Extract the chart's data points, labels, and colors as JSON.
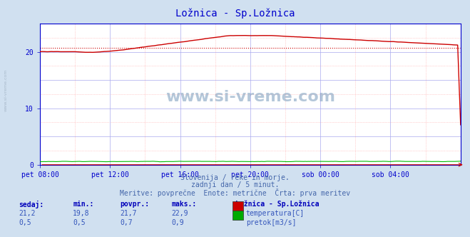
{
  "title": "Ložnica - Sp.Ložnica",
  "bg_color": "#d0e0f0",
  "plot_bg_color": "#ffffff",
  "grid_color_major": "#aaaaee",
  "grid_color_minor": "#ffaaaa",
  "title_color": "#0000cc",
  "axis_color": "#0000cc",
  "text_color": "#4466aa",
  "watermark": "www.si-vreme.com",
  "watermark_color": "#7799bb",
  "subtitle1": "Slovenija / reke in morje.",
  "subtitle2": "zadnji dan / 5 minut.",
  "subtitle3": "Meritve: povprečne  Enote: metrične  Črta: prva meritev",
  "legend_title": "Ložnica - Sp.Ložnica",
  "legend_rows": [
    {
      "sedaj": "21,2",
      "min": "19,8",
      "povpr": "21,7",
      "maks": "22,9",
      "color": "#cc0000",
      "label": "temperatura[C]"
    },
    {
      "sedaj": "0,5",
      "min": "0,5",
      "povpr": "0,7",
      "maks": "0,9",
      "color": "#00aa00",
      "label": "pretok[m3/s]"
    }
  ],
  "col_headers": [
    "sedaj:",
    "min.:",
    "povpr.:",
    "maks.:"
  ],
  "x_labels": [
    "pet 08:00",
    "pet 12:00",
    "pet 16:00",
    "pet 20:00",
    "sob 00:00",
    "sob 04:00"
  ],
  "x_ticks_norm": [
    0.0,
    0.1667,
    0.3333,
    0.5,
    0.6667,
    0.8333
  ],
  "total_points": 288,
  "ylim": [
    0,
    25
  ],
  "yticks": [
    0,
    10,
    20
  ],
  "avg_line_value": 20.7,
  "avg_line_color": "#cc0000",
  "temp_color": "#cc0000",
  "flow_color": "#00bb00",
  "border_color": "#0000cc",
  "arrow_color": "#cc0000",
  "left_label_color": "#aabbcc"
}
